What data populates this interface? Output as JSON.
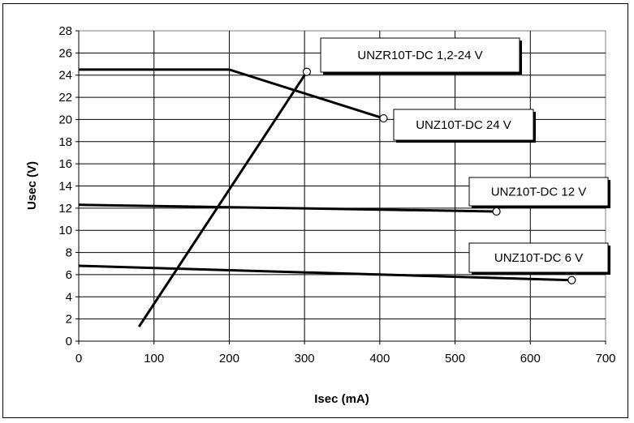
{
  "chart_data": {
    "type": "line",
    "title": "",
    "xlabel": "Isec (mA)",
    "ylabel": "Usec (V)",
    "xlim": [
      0,
      700
    ],
    "ylim": [
      0,
      28
    ],
    "x_ticks": [
      0,
      100,
      200,
      300,
      400,
      500,
      600,
      700
    ],
    "y_ticks": [
      0,
      2,
      4,
      6,
      8,
      10,
      12,
      14,
      16,
      18,
      20,
      22,
      24,
      26,
      28
    ],
    "grid": true,
    "series": [
      {
        "name": "UNZR10T-DC 1,2-24 V",
        "x": [
          80,
          303
        ],
        "y": [
          1.3,
          24.3
        ],
        "end_marker": true
      },
      {
        "name": "UNZ10T-DC 24 V",
        "x": [
          0,
          200,
          405
        ],
        "y": [
          24.5,
          24.5,
          20.1
        ],
        "end_marker": true
      },
      {
        "name": "UNZ10T-DC 12 V",
        "x": [
          0,
          555
        ],
        "y": [
          12.3,
          11.7
        ],
        "end_marker": true
      },
      {
        "name": "UNZ10T-DC 6 V",
        "x": [
          0,
          655
        ],
        "y": [
          6.8,
          5.5
        ],
        "end_marker": true
      }
    ]
  }
}
